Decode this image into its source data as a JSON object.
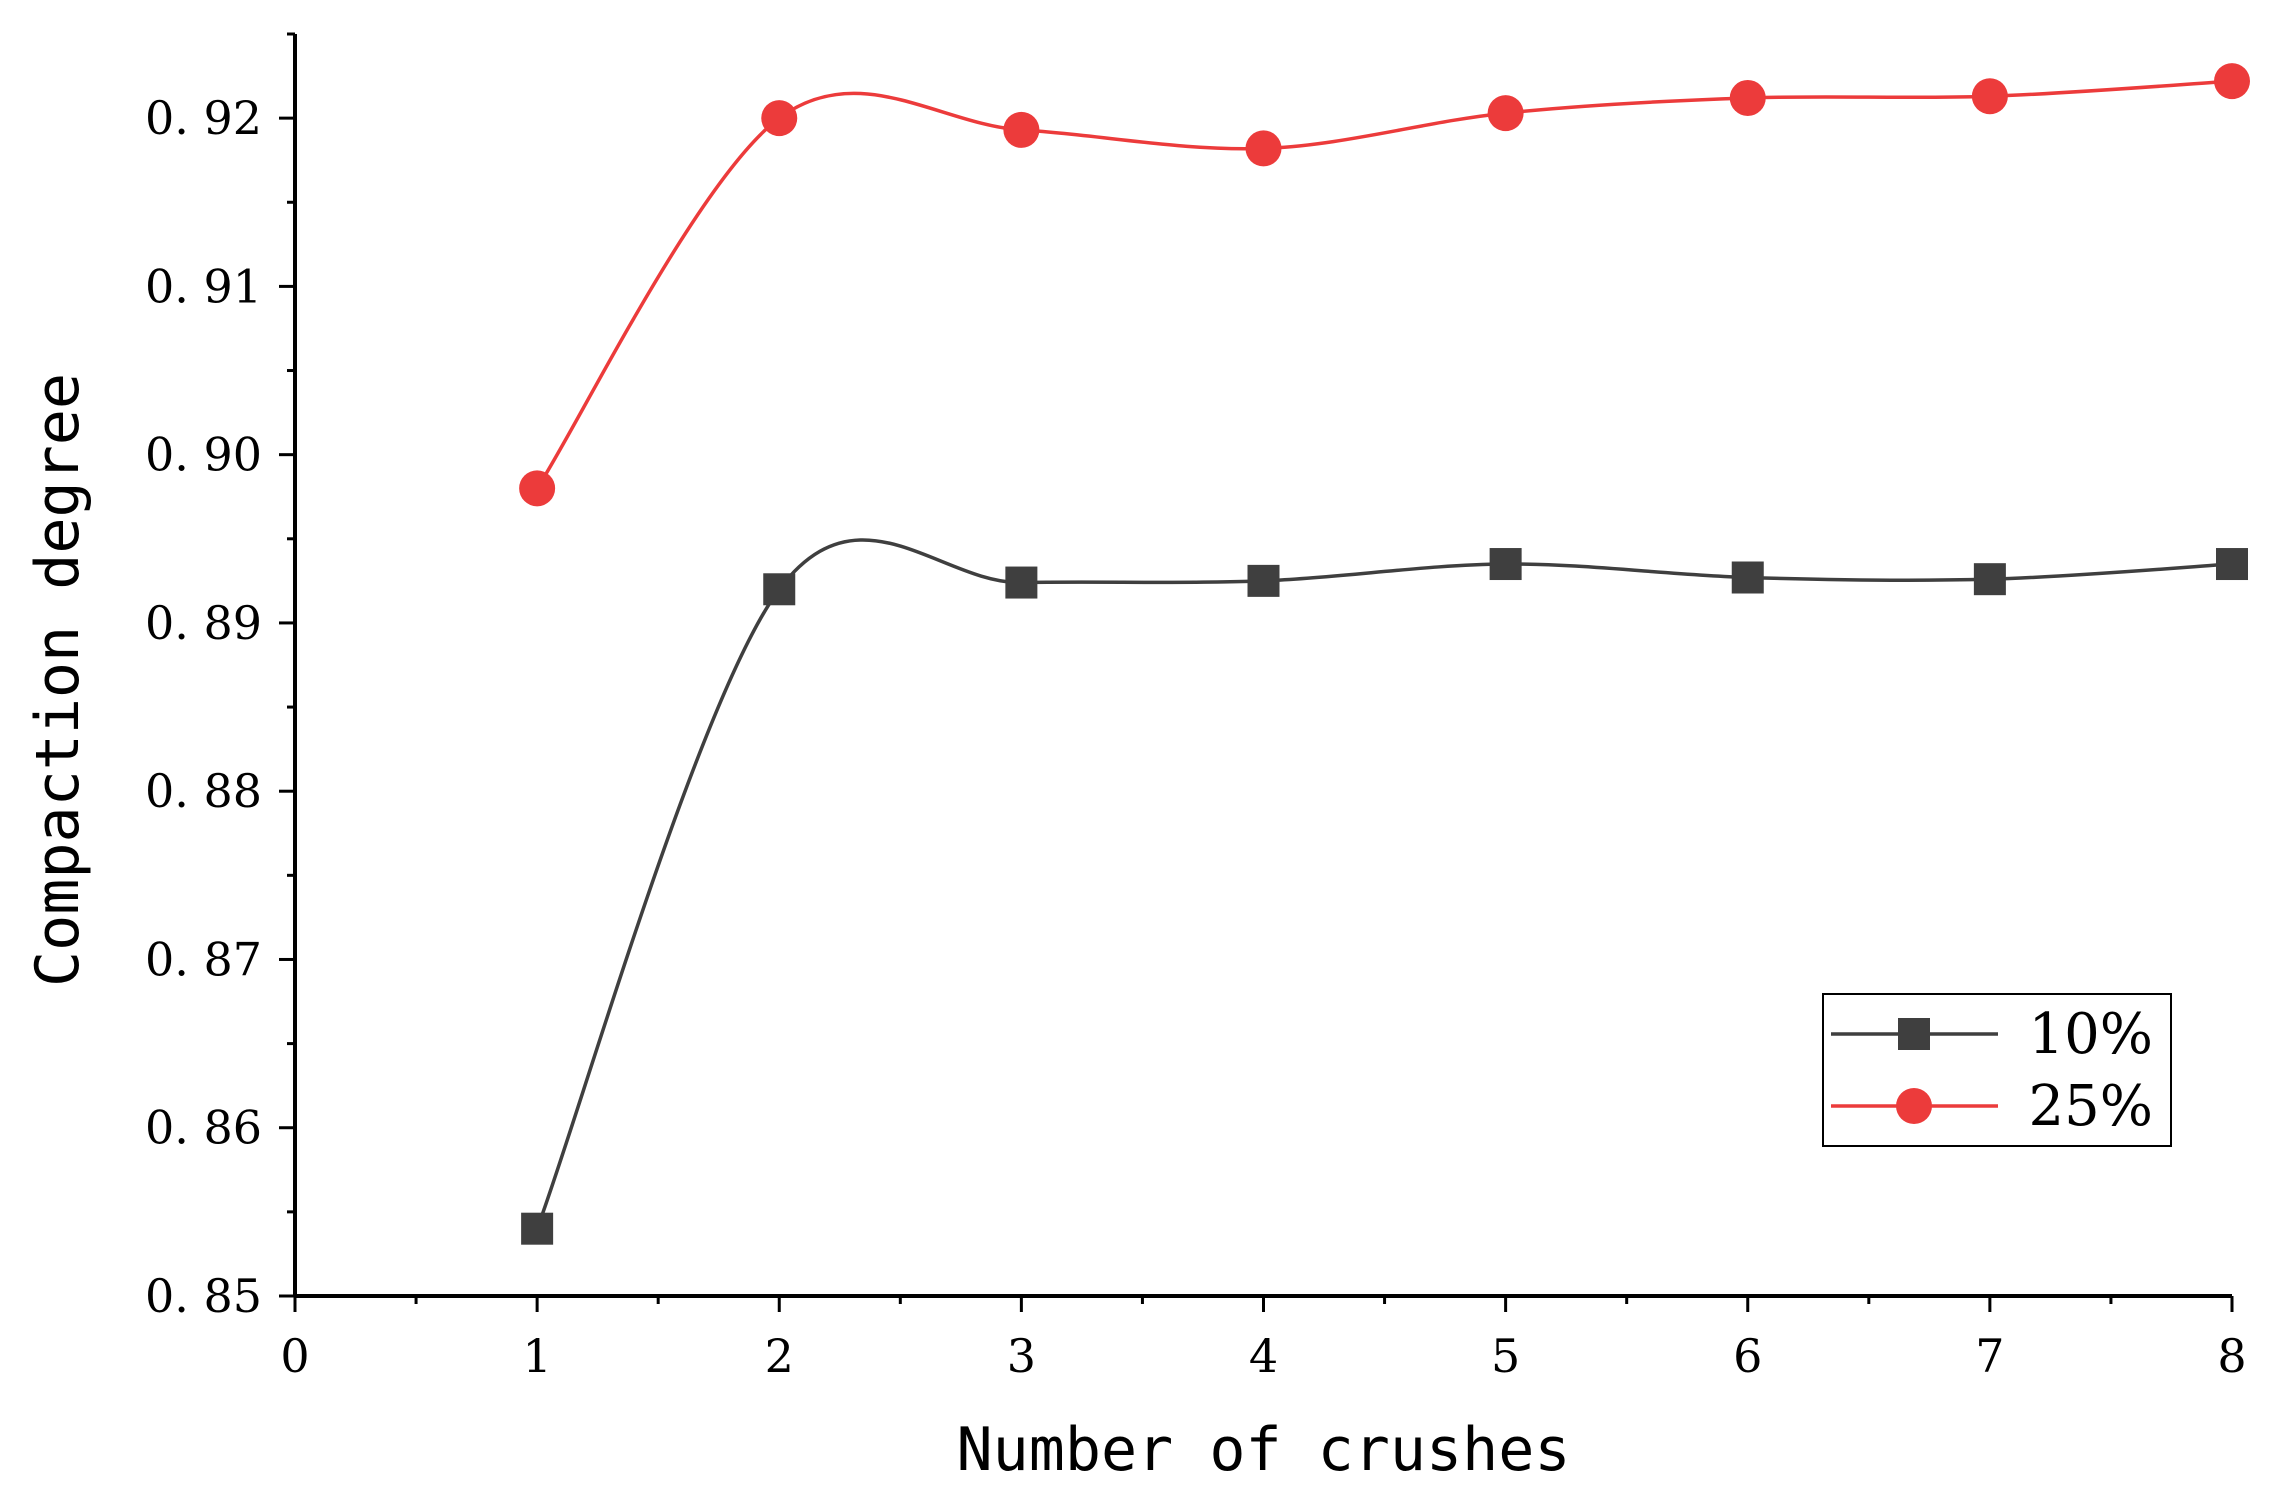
{
  "chart_data": {
    "type": "line",
    "xlabel": "Number of crushes",
    "ylabel": "Compaction degree",
    "xlim": [
      0,
      8
    ],
    "ylim": [
      0.85,
      0.925
    ],
    "x_ticks": [
      "0",
      "1",
      "2",
      "3",
      "4",
      "5",
      "6",
      "7",
      "8"
    ],
    "y_ticks": [
      "0. 85",
      "0. 86",
      "0. 87",
      "0. 88",
      "0. 89",
      "0. 90",
      "0. 91",
      "0. 92"
    ],
    "grid": false,
    "legend_position": "bottom-right",
    "smooth": true,
    "series": [
      {
        "name": "10%",
        "marker": "square",
        "color": "#3f3f3f",
        "x": [
          1,
          2,
          3,
          4,
          5,
          6,
          7,
          8
        ],
        "values": [
          0.854,
          0.892,
          0.8924,
          0.8925,
          0.8935,
          0.8927,
          0.8926,
          0.8935
        ]
      },
      {
        "name": "25%",
        "marker": "circle",
        "color": "#ec3b3b",
        "x": [
          1,
          2,
          3,
          4,
          5,
          6,
          7,
          8
        ],
        "values": [
          0.898,
          0.92,
          0.9193,
          0.9182,
          0.9203,
          0.9212,
          0.9213,
          0.9222
        ]
      }
    ]
  }
}
